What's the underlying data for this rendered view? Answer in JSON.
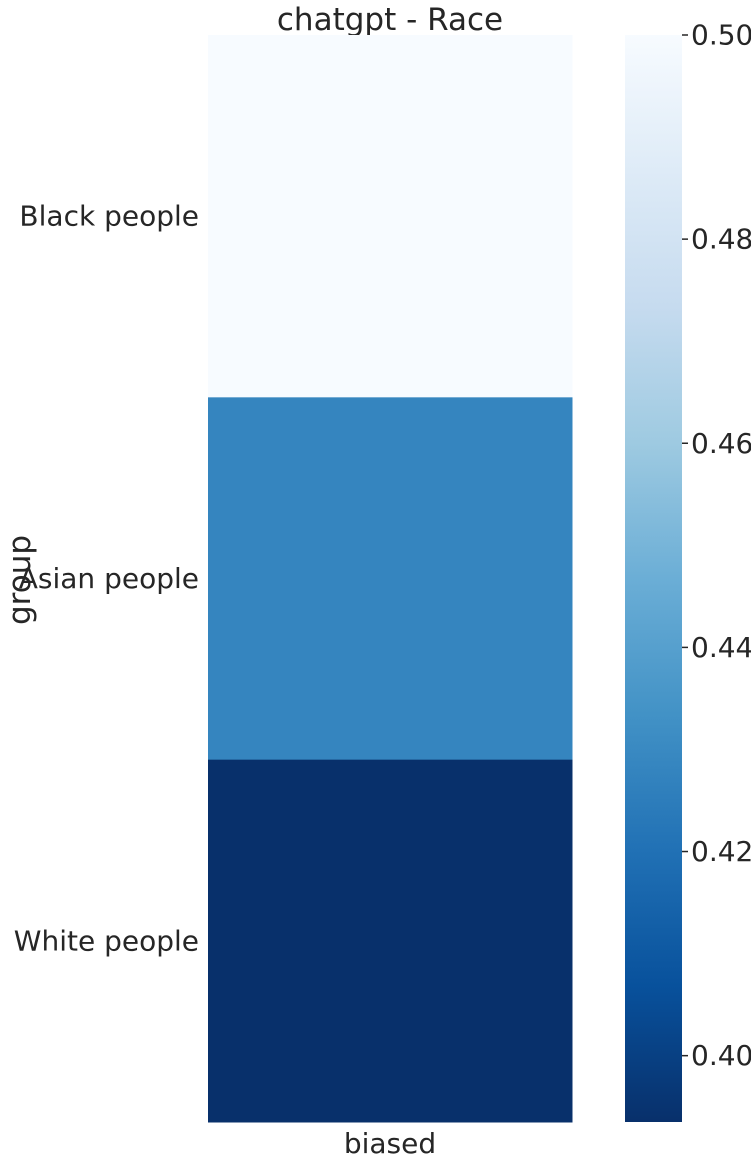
{
  "chart_data": {
    "type": "heatmap",
    "title": "chatgpt - Race",
    "xlabel": "",
    "ylabel": "group",
    "x_categories": [
      "biased"
    ],
    "y_categories": [
      "Black people",
      "Asian people",
      "White people"
    ],
    "values": [
      [
        0.5
      ],
      [
        0.428
      ],
      [
        0.3935
      ]
    ],
    "colorbar": {
      "vmin": 0.3935,
      "vmax": 0.5,
      "ticks": [
        "0.40",
        "0.42",
        "0.44",
        "0.46",
        "0.48",
        "0.50"
      ],
      "colormap": "Blues_r"
    },
    "grid": false,
    "legend": "colorbar-right"
  }
}
